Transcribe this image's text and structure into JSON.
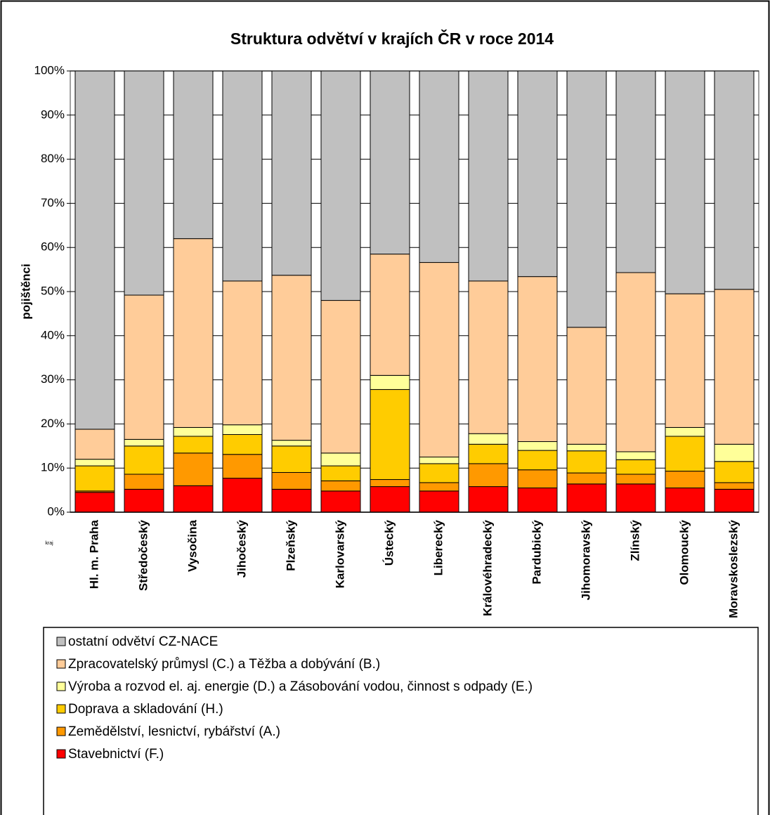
{
  "chart_data": {
    "type": "stacked_bar",
    "title": "Struktura odvětví v krajích ČR v roce 2014",
    "y_label": "pojištěnci",
    "x_label": "kraj",
    "categories": [
      "Hl. m. Praha",
      "Středočeský",
      "Vysočina",
      "Jihočeský",
      "Plzeňský",
      "Karlovarský",
      "Ústecký",
      "Liberecký",
      "Královéhradecký",
      "Pardubický",
      "Jihomoravský",
      "Zlínský",
      "Olomoucký",
      "Moravskoslezský"
    ],
    "series": [
      {
        "name": "Stavebnictví (F.)",
        "color": "#ff0000",
        "values": [
          4.5,
          5.2,
          6.0,
          7.7,
          5.2,
          4.8,
          5.8,
          4.8,
          5.8,
          5.5,
          6.4,
          6.4,
          5.5,
          5.2
        ]
      },
      {
        "name": "Zemědělství, lesnictví, rybářství (A.)",
        "color": "#ff9900",
        "values": [
          0.3,
          3.4,
          7.4,
          5.4,
          3.8,
          2.3,
          1.6,
          1.9,
          5.2,
          4.1,
          2.5,
          2.2,
          3.8,
          1.5
        ]
      },
      {
        "name": "Doprava a skladování (H.)",
        "color": "#ffcc00",
        "values": [
          5.7,
          6.4,
          3.8,
          4.5,
          6.0,
          3.4,
          20.4,
          4.3,
          4.4,
          4.4,
          5.0,
          3.3,
          7.9,
          4.8
        ]
      },
      {
        "name": "Výroba a rozvod el. aj. energie (D.) a Zásobování vodou, činnost s odpady (E.)",
        "color": "#ffff99",
        "values": [
          1.5,
          1.5,
          2.0,
          2.2,
          1.3,
          2.9,
          3.2,
          1.5,
          2.4,
          2.0,
          1.5,
          1.8,
          2.0,
          3.9
        ]
      },
      {
        "name": "Zpracovatelský průmysl (C.) a Těžba a dobývání (B.)",
        "color": "#ffcc99",
        "values": [
          6.8,
          32.7,
          42.8,
          32.6,
          37.4,
          34.6,
          27.5,
          44.1,
          34.6,
          37.4,
          26.5,
          40.6,
          30.3,
          35.1
        ]
      },
      {
        "name": "ostatní odvětví CZ-NACE",
        "color": "#c0c0c0",
        "values": [
          81.2,
          50.8,
          38.0,
          47.6,
          46.3,
          52.0,
          41.5,
          43.4,
          47.6,
          46.6,
          58.1,
          45.7,
          50.5,
          49.5
        ]
      }
    ],
    "ylim": [
      0,
      100
    ],
    "yticks": [
      {
        "value": 0,
        "label": "0%"
      },
      {
        "value": 10,
        "label": "10%"
      },
      {
        "value": 20,
        "label": "20%"
      },
      {
        "value": 30,
        "label": "30%"
      },
      {
        "value": 40,
        "label": "40%"
      },
      {
        "value": 50,
        "label": "50%"
      },
      {
        "value": 60,
        "label": "60%"
      },
      {
        "value": 70,
        "label": "70%"
      },
      {
        "value": 80,
        "label": "80%"
      },
      {
        "value": 90,
        "label": "90%"
      },
      {
        "value": 100,
        "label": "100%"
      }
    ],
    "grid": true,
    "legend": "bottom"
  }
}
